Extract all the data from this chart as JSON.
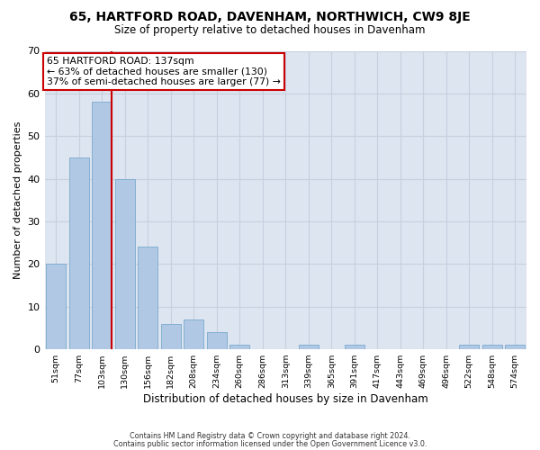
{
  "title_line1": "65, HARTFORD ROAD, DAVENHAM, NORTHWICH, CW9 8JE",
  "title_line2": "Size of property relative to detached houses in Davenham",
  "xlabel": "Distribution of detached houses by size in Davenham",
  "ylabel": "Number of detached properties",
  "categories": [
    "51sqm",
    "77sqm",
    "103sqm",
    "130sqm",
    "156sqm",
    "182sqm",
    "208sqm",
    "234sqm",
    "260sqm",
    "286sqm",
    "313sqm",
    "339sqm",
    "365sqm",
    "391sqm",
    "417sqm",
    "443sqm",
    "469sqm",
    "496sqm",
    "522sqm",
    "548sqm",
    "574sqm"
  ],
  "values": [
    20,
    45,
    58,
    40,
    24,
    6,
    7,
    4,
    1,
    0,
    0,
    1,
    0,
    1,
    0,
    0,
    0,
    0,
    1,
    1,
    1
  ],
  "bar_color": "#b8ccе4",
  "bar_edge_color": "#6699cc",
  "vline_color": "#cc0000",
  "vline_x_index": 2,
  "annotation_text_line1": "65 HARTFORD ROAD: 137sqm",
  "annotation_text_line2": "← 63% of detached houses are smaller (130)",
  "annotation_text_line3": "37% of semi-detached houses are larger (77) →",
  "annotation_box_edge_color": "#cc0000",
  "ylim": [
    0,
    70
  ],
  "yticks": [
    0,
    10,
    20,
    30,
    40,
    50,
    60,
    70
  ],
  "grid_color": "#c8d0e0",
  "background_color": "#dde5f0",
  "footer_line1": "Contains HM Land Registry data © Crown copyright and database right 2024.",
  "footer_line2": "Contains public sector information licensed under the Open Government Licence v3.0."
}
